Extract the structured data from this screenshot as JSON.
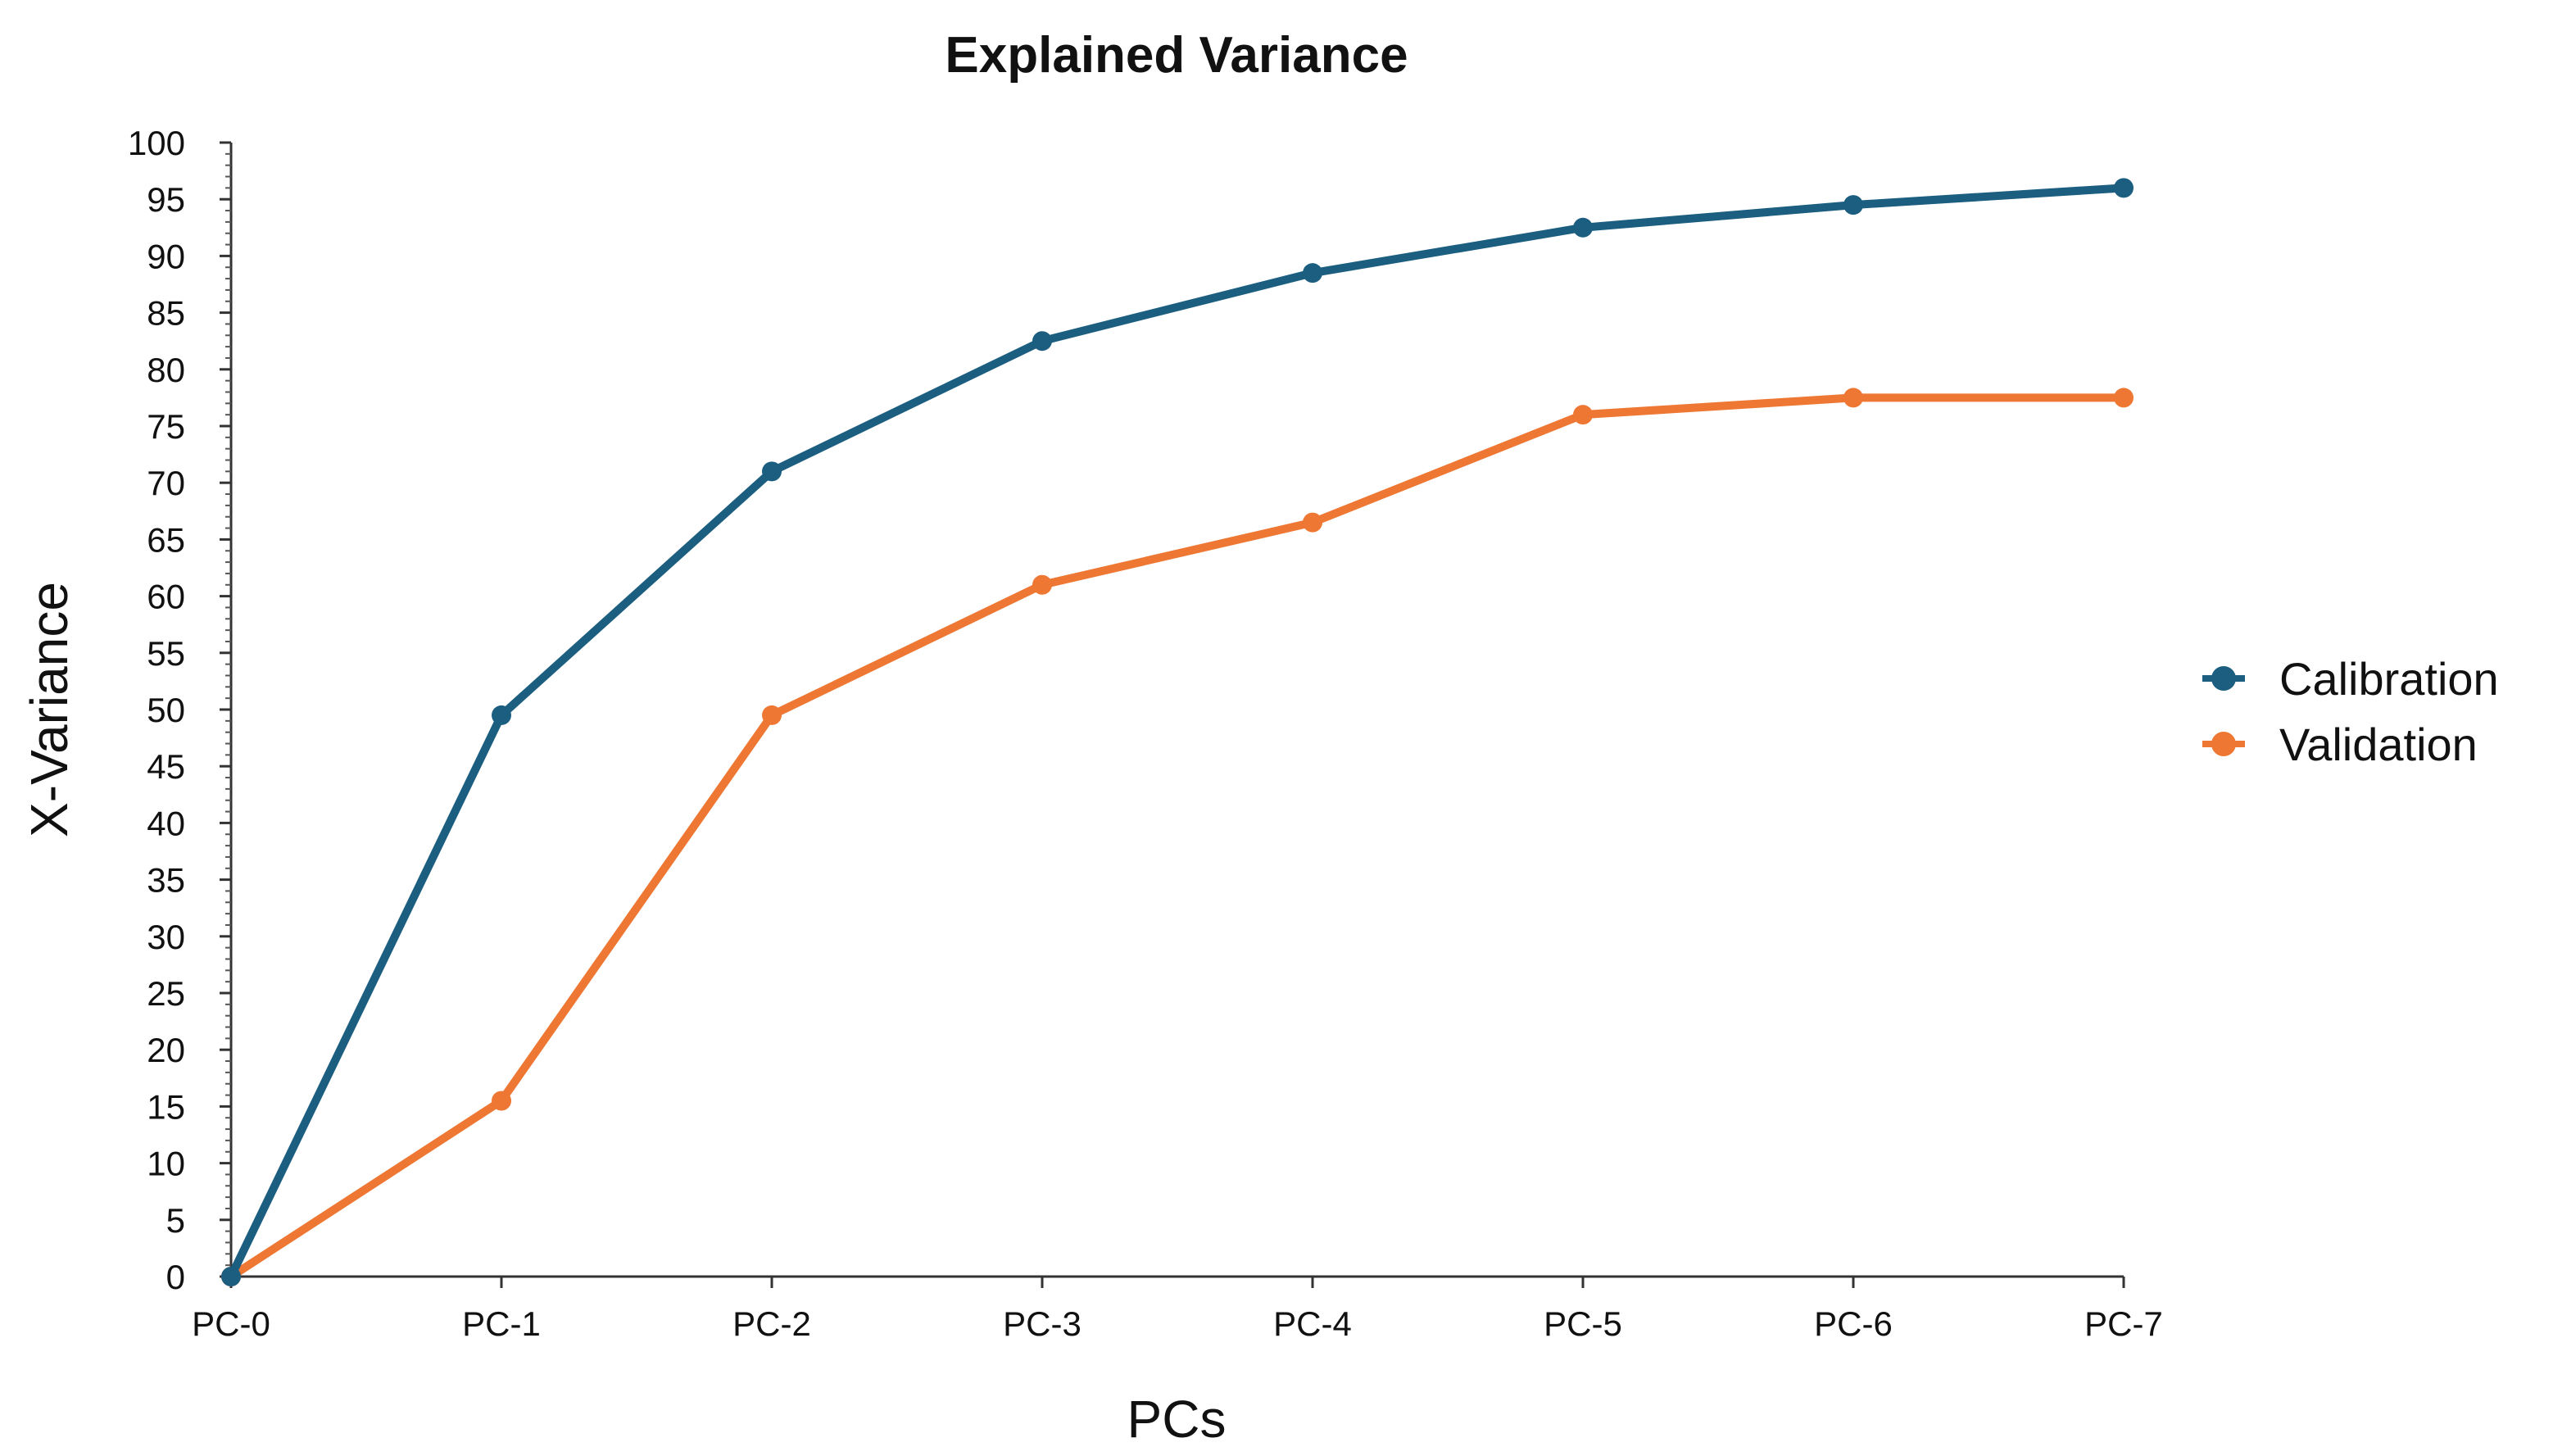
{
  "chart_data": {
    "type": "line",
    "title": "Explained Variance",
    "xlabel": "PCs",
    "ylabel": "X-Variance",
    "categories": [
      "PC-0",
      "PC-1",
      "PC-2",
      "PC-3",
      "PC-4",
      "PC-5",
      "PC-6",
      "PC-7"
    ],
    "ylim": [
      0,
      100
    ],
    "yticks": [
      0,
      5,
      10,
      15,
      20,
      25,
      30,
      35,
      40,
      45,
      50,
      55,
      60,
      65,
      70,
      75,
      80,
      85,
      90,
      95,
      100
    ],
    "grid": false,
    "legend_position": "right",
    "series": [
      {
        "name": "Calibration",
        "color": "#1b5e80",
        "values": [
          0,
          49.5,
          71,
          82.5,
          88.5,
          92.5,
          94.5,
          96
        ]
      },
      {
        "name": "Validation",
        "color": "#ee7733",
        "values": [
          0,
          15.5,
          49.5,
          61,
          66.5,
          76,
          77.5,
          77.5
        ]
      }
    ]
  }
}
